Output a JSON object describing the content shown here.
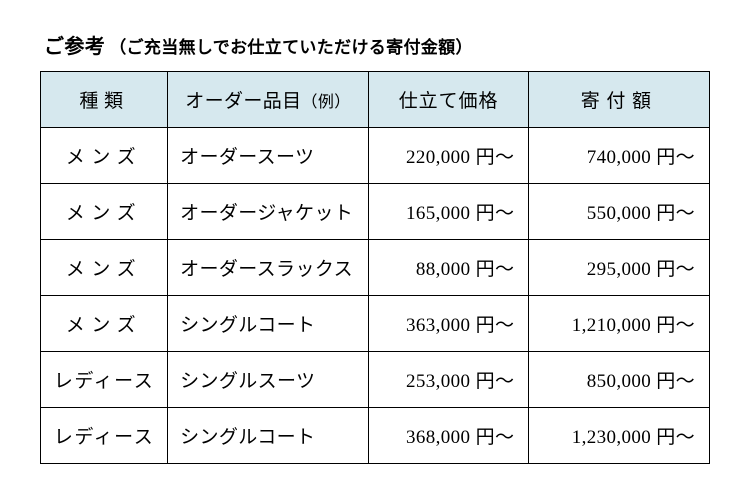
{
  "title": {
    "main": "ご参考",
    "sub": "（ご充当無しでお仕立ていただける寄付金額）"
  },
  "table": {
    "headers": {
      "category": "種類",
      "item_main": "オーダー品目",
      "item_sub": "（例）",
      "price": "仕立て価格",
      "donation": "寄付額"
    },
    "rows": [
      {
        "category": "メンズ",
        "category_class": "",
        "item": "オーダースーツ",
        "price": "220,000 円～",
        "donation": "740,000 円～"
      },
      {
        "category": "メンズ",
        "category_class": "",
        "item": "オーダージャケット",
        "price": "165,000 円～",
        "donation": "550,000 円～"
      },
      {
        "category": "メンズ",
        "category_class": "",
        "item": "オーダースラックス",
        "price": "88,000 円～",
        "donation": "295,000 円～"
      },
      {
        "category": "メンズ",
        "category_class": "",
        "item": "シングルコート",
        "price": "363,000 円～",
        "donation": "1,210,000 円～"
      },
      {
        "category": "レディース",
        "category_class": "ladies",
        "item": "シングルスーツ",
        "price": "253,000 円～",
        "donation": "850,000 円～"
      },
      {
        "category": "レディース",
        "category_class": "ladies",
        "item": "シングルコート",
        "price": "368,000 円～",
        "donation": "1,230,000 円～"
      }
    ]
  },
  "colors": {
    "header_bg": "#d6e8ee",
    "border": "#000000",
    "text": "#000000",
    "background": "#ffffff"
  }
}
